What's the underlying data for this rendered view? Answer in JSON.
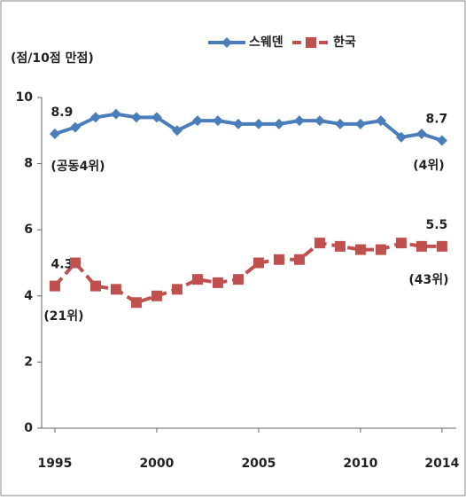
{
  "chart_data": {
    "type": "line",
    "y_axis_label": "(점/10점 만점)",
    "x": [
      1995,
      1996,
      1997,
      1998,
      1999,
      2000,
      2001,
      2002,
      2003,
      2004,
      2005,
      2006,
      2007,
      2008,
      2009,
      2010,
      2011,
      2012,
      2013,
      2014
    ],
    "xlim": [
      1994.35,
      2014.7
    ],
    "xticks": [
      1995,
      2000,
      2005,
      2010,
      2014
    ],
    "ylim": [
      0,
      10
    ],
    "yticks": [
      0,
      2,
      4,
      6,
      8,
      10
    ],
    "series": [
      {
        "name": "스웨덴",
        "color": "#4a7ebb",
        "marker": "diamond",
        "dashed": false,
        "values": [
          8.9,
          9.1,
          9.4,
          9.5,
          9.4,
          9.4,
          9.0,
          9.3,
          9.3,
          9.2,
          9.2,
          9.2,
          9.3,
          9.3,
          9.2,
          9.2,
          9.3,
          8.8,
          8.9,
          8.7
        ],
        "value_labels": [
          "8.9",
          null,
          null,
          null,
          null,
          null,
          null,
          null,
          null,
          null,
          null,
          null,
          null,
          null,
          null,
          null,
          null,
          null,
          null,
          "8.7"
        ]
      },
      {
        "name": "한국",
        "color": "#c0504d",
        "marker": "square",
        "dashed": true,
        "values": [
          4.3,
          5.0,
          4.3,
          4.2,
          3.8,
          4.0,
          4.2,
          4.5,
          4.4,
          4.5,
          5.0,
          5.1,
          5.1,
          5.6,
          5.5,
          5.4,
          5.4,
          5.6,
          5.5,
          5.5
        ],
        "value_labels": [
          "4.3",
          null,
          null,
          null,
          null,
          null,
          null,
          null,
          null,
          null,
          null,
          null,
          null,
          null,
          null,
          null,
          null,
          null,
          null,
          "5.5"
        ]
      }
    ],
    "annotations": [
      "(공동4위)",
      "(4위)",
      "(21위)",
      "(43위)"
    ],
    "legend": "top"
  }
}
